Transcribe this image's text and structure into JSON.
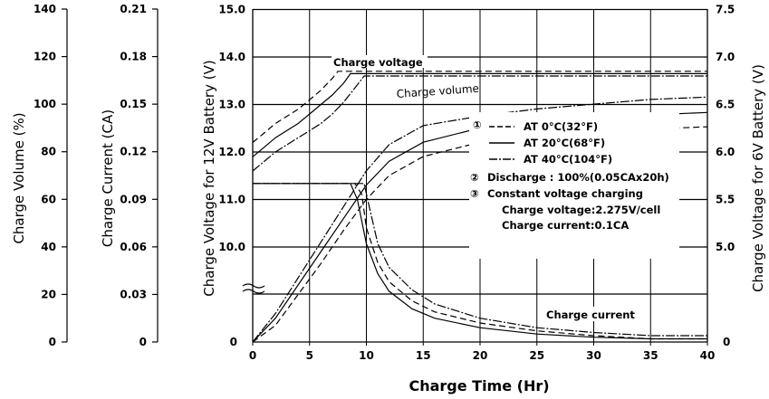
{
  "chart_data": {
    "type": "line",
    "xlabel": "Charge Time  (Hr)",
    "xlim": [
      0,
      40
    ],
    "x_ticks": [
      "0",
      "5",
      "10",
      "15",
      "20",
      "25",
      "30",
      "35",
      "40"
    ],
    "axes": {
      "volume": {
        "label": "Charge Volume (%)",
        "ticks": [
          "0",
          "20",
          "40",
          "60",
          "80",
          "100",
          "120",
          "140"
        ]
      },
      "current": {
        "label": "Charge Current (CA)",
        "ticks": [
          "0",
          "0.03",
          "0.06",
          "0.09",
          "0.12",
          "0.15",
          "0.18",
          "0.21"
        ]
      },
      "voltage12": {
        "label": "Charge Voltage for 12V Battery (V)",
        "ticks": [
          "0",
          "10.0",
          "11.0",
          "12.0",
          "13.0",
          "14.0",
          "15.0"
        ]
      },
      "voltage6": {
        "label": "Charge Voltage for 6V Battery (V)",
        "ticks": [
          "0",
          "5.0",
          "5.5",
          "6.0",
          "6.5",
          "7.0",
          "7.5"
        ]
      }
    },
    "annotations": {
      "charge_voltage": "Charge voltage",
      "charge_volume": "Charge volume",
      "charge_current": "Charge current",
      "mark1": "①",
      "mark2": "②",
      "mark3": "③",
      "legend_0c": "AT 0°C(32°F)",
      "legend_20c": "AT 20°C(68°F)",
      "legend_40c": "AT 40°C(104°F)",
      "discharge": "Discharge : 100%(0.05CAx20h)",
      "cv_title": "Constant voltage charging",
      "cv_voltage": "Charge voltage:2.275V/cell",
      "cv_current": "Charge current:0.1CA"
    },
    "series": [
      {
        "name": "AT 0°C(32°F)",
        "style": "dashed",
        "voltage_12v": {
          "x": [
            0,
            1,
            2,
            3,
            4,
            5,
            6,
            7,
            7.5,
            40
          ],
          "y": [
            12.2,
            12.4,
            12.6,
            12.75,
            12.9,
            13.1,
            13.3,
            13.55,
            13.7,
            13.7
          ]
        },
        "volume_pct": {
          "x": [
            0,
            2,
            4,
            6,
            8,
            10,
            12,
            15,
            20,
            25,
            30,
            35,
            40
          ],
          "y": [
            0,
            7,
            20,
            33,
            47,
            60,
            70,
            78,
            84,
            87,
            88.5,
            89.5,
            90.5
          ]
        },
        "current_ca": {
          "x": [
            0,
            9,
            9.6,
            10,
            11,
            12,
            14,
            16,
            20,
            25,
            30,
            35,
            40
          ],
          "y": [
            0.1,
            0.1,
            0.093,
            0.072,
            0.05,
            0.038,
            0.026,
            0.019,
            0.012,
            0.007,
            0.004,
            0.002,
            0.002
          ]
        }
      },
      {
        "name": "AT 20°C(68°F)",
        "style": "solid",
        "voltage_12v": {
          "x": [
            0,
            1,
            2,
            3,
            4,
            5,
            6,
            7,
            8,
            8.6,
            40
          ],
          "y": [
            11.9,
            12.1,
            12.3,
            12.45,
            12.6,
            12.8,
            13.0,
            13.2,
            13.45,
            13.65,
            13.65
          ]
        },
        "volume_pct": {
          "x": [
            0,
            2,
            4,
            6,
            8,
            10,
            12,
            15,
            20,
            25,
            30,
            35,
            40
          ],
          "y": [
            0,
            10,
            24,
            38,
            52,
            66,
            76,
            84,
            90,
            92.5,
            94,
            95.5,
            96.5
          ]
        },
        "current_ca": {
          "x": [
            0,
            8.6,
            9.2,
            10,
            11,
            12,
            14,
            16,
            20,
            25,
            30,
            35,
            40
          ],
          "y": [
            0.1,
            0.1,
            0.09,
            0.062,
            0.043,
            0.032,
            0.021,
            0.015,
            0.009,
            0.005,
            0.003,
            0.002,
            0.002
          ]
        }
      },
      {
        "name": "AT 40°C(104°F)",
        "style": "dash-dot",
        "voltage_12v": {
          "x": [
            0,
            1,
            2,
            3,
            4,
            5,
            6,
            7,
            8,
            9,
            9.8,
            40
          ],
          "y": [
            11.6,
            11.8,
            12.0,
            12.15,
            12.3,
            12.45,
            12.6,
            12.8,
            13.05,
            13.35,
            13.6,
            13.6
          ]
        },
        "volume_pct": {
          "x": [
            0,
            2,
            4,
            6,
            8,
            10,
            12,
            15,
            20,
            25,
            30,
            35,
            40
          ],
          "y": [
            0,
            12,
            27,
            42,
            57,
            72,
            83,
            91,
            95,
            98,
            100,
            102,
            103
          ]
        },
        "current_ca": {
          "x": [
            0,
            9.8,
            10.2,
            11,
            12,
            14,
            16,
            20,
            25,
            30,
            35,
            40
          ],
          "y": [
            0.1,
            0.1,
            0.087,
            0.062,
            0.047,
            0.033,
            0.024,
            0.015,
            0.009,
            0.006,
            0.004,
            0.004
          ]
        }
      }
    ],
    "grid": true
  }
}
